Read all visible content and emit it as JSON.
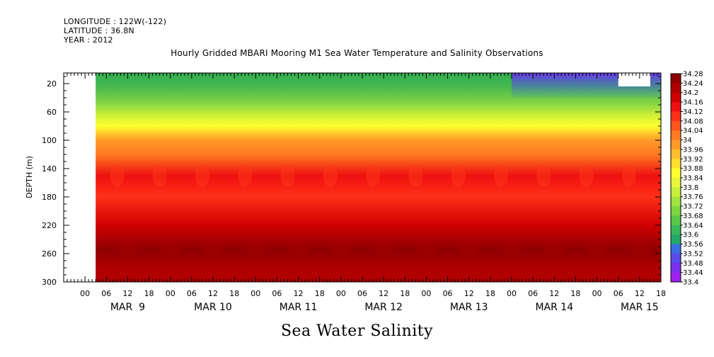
{
  "header": {
    "longitude": "LONGITUDE : 122W(-122)",
    "latitude": "LATITUDE : 36.8N",
    "year": "YEAR : 2012"
  },
  "chart_data": {
    "type": "heatmap",
    "title": "Hourly Gridded MBARI Mooring M1 Sea Water Temperature and Salinity Observations",
    "xlabel": "",
    "ylabel": "DEPTH (m)",
    "footer": "Sea Water Salinity",
    "x_hour_ticks": [
      "00",
      "06",
      "12",
      "18",
      "00",
      "06",
      "12",
      "18",
      "00",
      "06",
      "12",
      "18",
      "00",
      "06",
      "12",
      "18",
      "00",
      "06",
      "12",
      "18",
      "00",
      "06",
      "12",
      "18",
      "00",
      "06",
      "12",
      "18"
    ],
    "x_day_labels": [
      "MAR  9",
      "MAR 10",
      "MAR 11",
      "MAR 12",
      "MAR 13",
      "MAR 14",
      "MAR 15"
    ],
    "x_range_hours": [
      -6,
      162
    ],
    "data_start_hour": 3,
    "data_end_hour": 162,
    "y_ticks": [
      20,
      60,
      100,
      140,
      180,
      220,
      260,
      300
    ],
    "ylim": [
      5,
      300
    ],
    "colorbar_labels": [
      "34.28",
      "34.24",
      "34.2",
      "34.16",
      "34.12",
      "34.08",
      "34.04",
      "34",
      "33.96",
      "33.92",
      "33.88",
      "33.84",
      "33.8",
      "33.76",
      "33.72",
      "33.68",
      "33.64",
      "33.6",
      "33.56",
      "33.52",
      "33.48",
      "33.44",
      "33.4"
    ],
    "colorbar_colors": [
      "#8f0000",
      "#b00000",
      "#d00000",
      "#ee1010",
      "#ff3018",
      "#ff5520",
      "#ff7a22",
      "#ff9a28",
      "#ffbe30",
      "#ffe02e",
      "#ffff30",
      "#e8f53a",
      "#c8ee3c",
      "#a0e23e",
      "#7cd640",
      "#58c848",
      "#38b85a",
      "#22a868",
      "#3a6ee0",
      "#5a4ae6",
      "#7a30ec",
      "#a020f0"
    ],
    "depth_profile": [
      {
        "depth": 5,
        "value": 33.64
      },
      {
        "depth": 20,
        "value": 33.66
      },
      {
        "depth": 50,
        "value": 33.74
      },
      {
        "depth": 80,
        "value": 33.86
      },
      {
        "depth": 100,
        "value": 33.98
      },
      {
        "depth": 120,
        "value": 34.04
      },
      {
        "depth": 150,
        "value": 34.14
      },
      {
        "depth": 180,
        "value": 34.1
      },
      {
        "depth": 220,
        "value": 34.18
      },
      {
        "depth": 255,
        "value": 34.26
      },
      {
        "depth": 280,
        "value": 34.23
      },
      {
        "depth": 300,
        "value": 34.2
      }
    ]
  },
  "colors": {
    "frame": "#000000",
    "missing": "#ffffff"
  }
}
